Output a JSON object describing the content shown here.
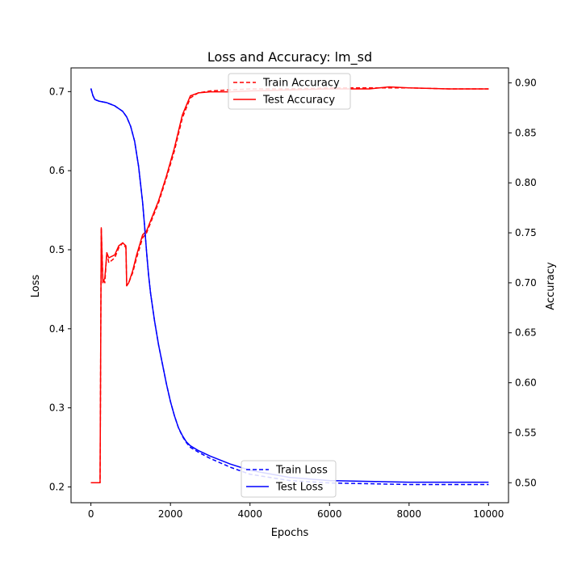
{
  "chart_data": {
    "type": "line",
    "title": "Loss and Accuracy: lm_sd",
    "xlabel": "Epochs",
    "ylabel_left": "Loss",
    "ylabel_right": "Accuracy",
    "xlim": [
      -500,
      10500
    ],
    "ylim_left": [
      0.18,
      0.73
    ],
    "ylim_right": [
      0.48,
      0.915
    ],
    "x_ticks": [
      0,
      2000,
      4000,
      6000,
      8000,
      10000
    ],
    "y_left_ticks": [
      0.2,
      0.3,
      0.4,
      0.5,
      0.6,
      0.7
    ],
    "y_right_ticks": [
      0.5,
      0.55,
      0.6,
      0.65,
      0.7,
      0.75,
      0.8,
      0.85,
      0.9
    ],
    "grid": false,
    "legends": [
      {
        "position": "top-center",
        "entries": [
          "Train Accuracy",
          "Test Accuracy"
        ]
      },
      {
        "position": "bottom-center",
        "entries": [
          "Train Loss",
          "Test Loss"
        ]
      }
    ],
    "series": [
      {
        "name": "Train Accuracy",
        "axis": "right",
        "color": "#ff0000",
        "dash": true,
        "x": [
          0,
          200,
          230,
          260,
          300,
          350,
          400,
          450,
          600,
          700,
          800,
          880,
          900,
          950,
          1050,
          1150,
          1300,
          1400,
          1500,
          1700,
          1900,
          2100,
          2300,
          2500,
          2700,
          3000,
          3500,
          4000,
          5000,
          6000,
          7000,
          8000,
          9000,
          10000
        ],
        "y": [
          0.5,
          0.5,
          0.5,
          0.755,
          0.705,
          0.7,
          0.73,
          0.72,
          0.725,
          0.735,
          0.74,
          0.735,
          0.697,
          0.7,
          0.71,
          0.725,
          0.745,
          0.75,
          0.76,
          0.78,
          0.805,
          0.832,
          0.865,
          0.885,
          0.89,
          0.892,
          0.893,
          0.894,
          0.894,
          0.895,
          0.895,
          0.895,
          0.894,
          0.894
        ]
      },
      {
        "name": "Test Accuracy",
        "axis": "right",
        "color": "#ff0000",
        "dash": false,
        "x": [
          0,
          200,
          230,
          260,
          300,
          350,
          400,
          450,
          600,
          700,
          800,
          880,
          900,
          950,
          1050,
          1150,
          1300,
          1400,
          1500,
          1700,
          1900,
          2100,
          2300,
          2500,
          2700,
          3000,
          3500,
          4000,
          5000,
          6000,
          7000,
          7500,
          8000,
          9000,
          10000
        ],
        "y": [
          0.5,
          0.5,
          0.5,
          0.755,
          0.7,
          0.705,
          0.73,
          0.725,
          0.728,
          0.737,
          0.74,
          0.737,
          0.697,
          0.7,
          0.712,
          0.728,
          0.748,
          0.752,
          0.762,
          0.782,
          0.807,
          0.835,
          0.868,
          0.887,
          0.89,
          0.891,
          0.891,
          0.892,
          0.893,
          0.894,
          0.894,
          0.896,
          0.895,
          0.894,
          0.894
        ]
      },
      {
        "name": "Train Loss",
        "axis": "left",
        "color": "#0000ff",
        "dash": true,
        "x": [
          0,
          50,
          100,
          200,
          400,
          600,
          800,
          900,
          1000,
          1100,
          1200,
          1300,
          1350,
          1400,
          1450,
          1500,
          1600,
          1700,
          1800,
          1900,
          2000,
          2100,
          2200,
          2300,
          2400,
          2500,
          2700,
          3000,
          3500,
          4000,
          5000,
          6000,
          7000,
          8000,
          9000,
          10000
        ],
        "y": [
          0.704,
          0.695,
          0.69,
          0.688,
          0.686,
          0.682,
          0.675,
          0.668,
          0.656,
          0.637,
          0.605,
          0.56,
          0.53,
          0.497,
          0.468,
          0.445,
          0.41,
          0.38,
          0.355,
          0.33,
          0.308,
          0.29,
          0.275,
          0.264,
          0.256,
          0.25,
          0.244,
          0.236,
          0.225,
          0.216,
          0.208,
          0.205,
          0.204,
          0.203,
          0.203,
          0.203
        ]
      },
      {
        "name": "Test Loss",
        "axis": "left",
        "color": "#0000ff",
        "dash": false,
        "x": [
          0,
          50,
          100,
          200,
          400,
          600,
          800,
          900,
          1000,
          1100,
          1200,
          1300,
          1350,
          1400,
          1450,
          1500,
          1600,
          1700,
          1800,
          1900,
          2000,
          2100,
          2200,
          2300,
          2400,
          2500,
          2700,
          3000,
          3500,
          4000,
          5000,
          6000,
          7000,
          8000,
          9000,
          10000
        ],
        "y": [
          0.704,
          0.695,
          0.69,
          0.688,
          0.686,
          0.682,
          0.675,
          0.668,
          0.656,
          0.637,
          0.605,
          0.56,
          0.53,
          0.497,
          0.468,
          0.445,
          0.41,
          0.38,
          0.355,
          0.33,
          0.308,
          0.29,
          0.275,
          0.265,
          0.257,
          0.252,
          0.246,
          0.239,
          0.229,
          0.221,
          0.212,
          0.208,
          0.207,
          0.206,
          0.206,
          0.206
        ]
      }
    ]
  }
}
